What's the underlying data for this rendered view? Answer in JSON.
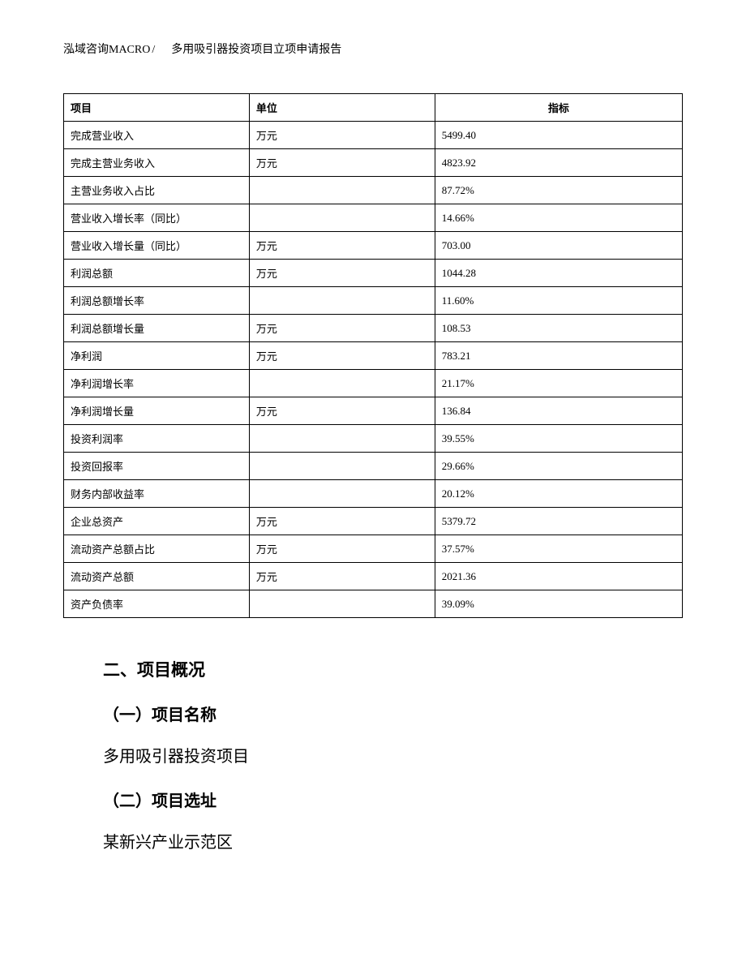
{
  "header": {
    "company": "泓域咨询MACRO",
    "separator": "/",
    "title": "多用吸引器投资项目立项申请报告"
  },
  "table": {
    "columns": [
      "项目",
      "单位",
      "指标"
    ],
    "rows": [
      {
        "item": "完成营业收入",
        "unit": "万元",
        "value": "5499.40"
      },
      {
        "item": "完成主营业务收入",
        "unit": "万元",
        "value": "4823.92"
      },
      {
        "item": "主营业务收入占比",
        "unit": "",
        "value": "87.72%"
      },
      {
        "item": "营业收入增长率（同比）",
        "unit": "",
        "value": "14.66%"
      },
      {
        "item": "营业收入增长量（同比）",
        "unit": "万元",
        "value": "703.00"
      },
      {
        "item": "利润总额",
        "unit": "万元",
        "value": "1044.28"
      },
      {
        "item": "利润总额增长率",
        "unit": "",
        "value": "11.60%"
      },
      {
        "item": "利润总额增长量",
        "unit": "万元",
        "value": "108.53"
      },
      {
        "item": "净利润",
        "unit": "万元",
        "value": "783.21"
      },
      {
        "item": "净利润增长率",
        "unit": "",
        "value": "21.17%"
      },
      {
        "item": "净利润增长量",
        "unit": "万元",
        "value": "136.84"
      },
      {
        "item": "投资利润率",
        "unit": "",
        "value": "39.55%"
      },
      {
        "item": "投资回报率",
        "unit": "",
        "value": "29.66%"
      },
      {
        "item": "财务内部收益率",
        "unit": "",
        "value": "20.12%"
      },
      {
        "item": "企业总资产",
        "unit": "万元",
        "value": "5379.72"
      },
      {
        "item": "流动资产总额占比",
        "unit": "万元",
        "value": "37.57%"
      },
      {
        "item": "流动资产总额",
        "unit": "万元",
        "value": "2021.36"
      },
      {
        "item": "资产负债率",
        "unit": "",
        "value": "39.09%"
      }
    ]
  },
  "content": {
    "section_heading": "二、项目概况",
    "sub1_heading": "（一）项目名称",
    "sub1_text": "多用吸引器投资项目",
    "sub2_heading": "（二）项目选址",
    "sub2_text": "某新兴产业示范区"
  }
}
